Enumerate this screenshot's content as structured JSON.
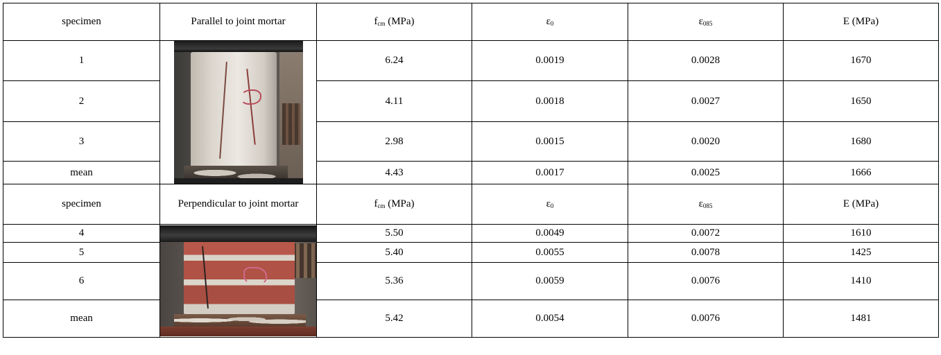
{
  "sections": [
    {
      "header": {
        "specimen": "specimen",
        "orientation": "Parallel to joint mortar",
        "fcm_main": "f",
        "fcm_sub": "cm",
        "fcm_unit": " (MPa)",
        "e0_main": "ε",
        "e0_sub": "0",
        "e085_main": "ε",
        "e085_sub": "085",
        "E": "E (MPa)"
      },
      "rows": [
        {
          "specimen": "1",
          "fcm": "6.24",
          "e0": "0.0019",
          "e085": "0.0028",
          "E": "1670"
        },
        {
          "specimen": "2",
          "fcm": "4.11",
          "e0": "0.0018",
          "e085": "0.0027",
          "E": "1650"
        },
        {
          "specimen": "3",
          "fcm": "2.98",
          "e0": "0.0015",
          "e085": "0.0020",
          "E": "1680"
        },
        {
          "specimen": "mean",
          "fcm": "4.43",
          "e0": "0.0017",
          "e085": "0.0025",
          "E": "1666"
        }
      ]
    },
    {
      "header": {
        "specimen": "specimen",
        "orientation": "Perpendicular to joint mortar",
        "fcm_main": "f",
        "fcm_sub": "cm",
        "fcm_unit": " (MPa)",
        "e0_main": "ε",
        "e0_sub": "0",
        "e085_main": "ε",
        "e085_sub": "085",
        "E": "E (MPa)"
      },
      "rows": [
        {
          "specimen": "4",
          "fcm": "5.50",
          "e0": "0.0049",
          "e085": "0.0072",
          "E": "1610"
        },
        {
          "specimen": "5",
          "fcm": "5.40",
          "e0": "0.0055",
          "e085": "0.0078",
          "E": "1425"
        },
        {
          "specimen": "6",
          "fcm": "5.36",
          "e0": "0.0059",
          "e085": "0.0076",
          "E": "1410"
        },
        {
          "specimen": "mean",
          "fcm": "5.42",
          "e0": "0.0054",
          "e085": "0.0076",
          "E": "1481"
        }
      ]
    }
  ]
}
